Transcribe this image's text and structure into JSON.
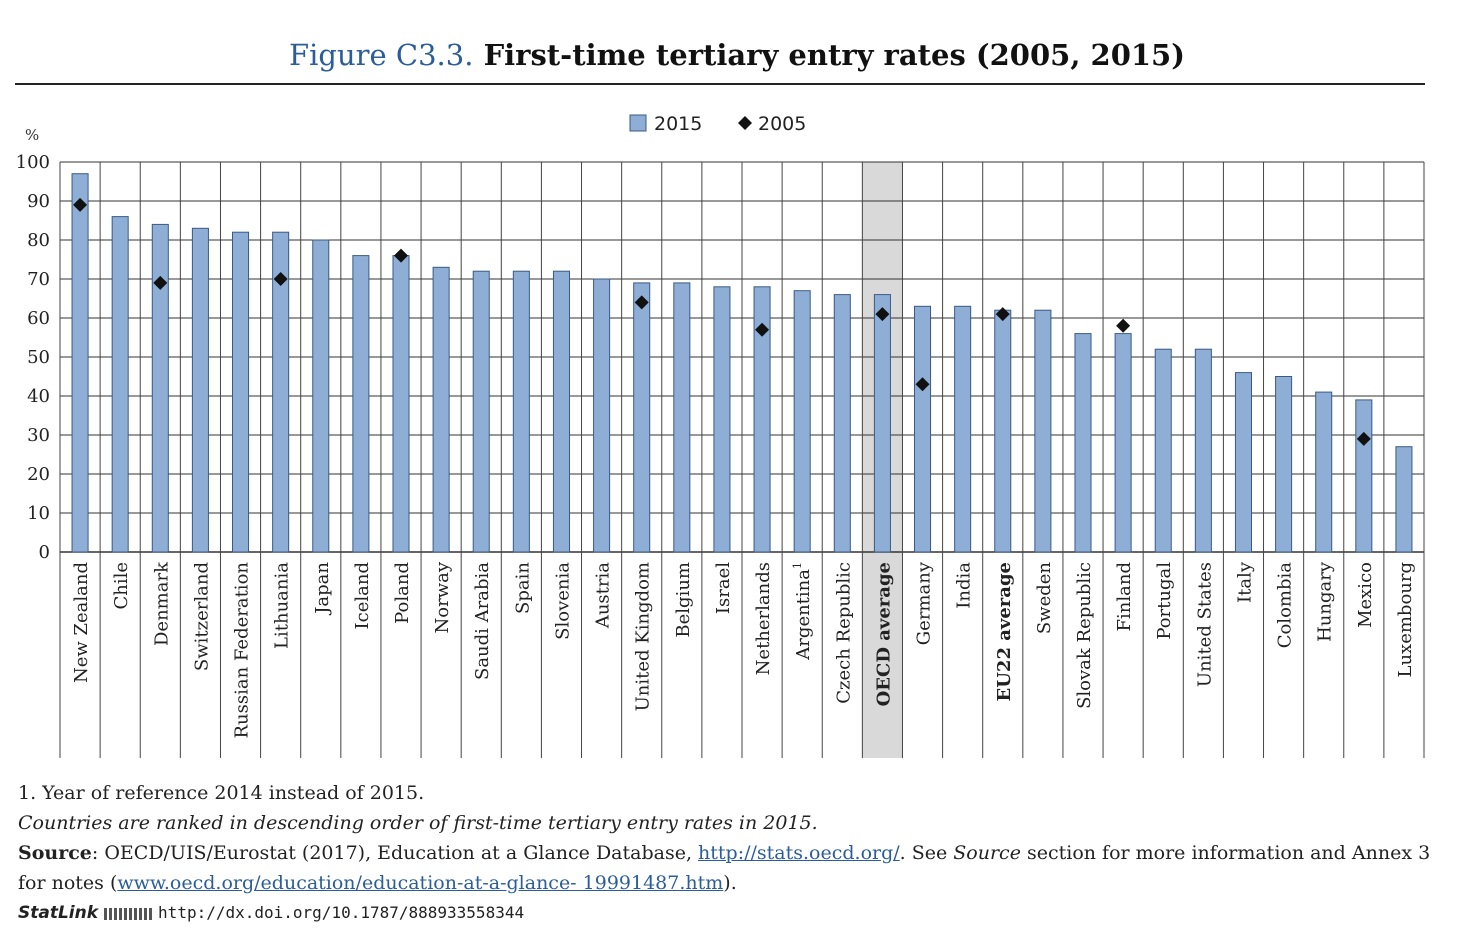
{
  "title": {
    "figure_label": "Figure C3.3.",
    "text": "First-time tertiary entry rates (2005, 2015)"
  },
  "colors": {
    "bar": "#8eaed6",
    "bar_stroke": "#3a5a86",
    "highlight_band": "#d9d9d9",
    "marker": "#111111",
    "link": "#2a5d99"
  },
  "chart_data": {
    "type": "bar",
    "ylabel": "%",
    "ylim": [
      0,
      100
    ],
    "yticks": [
      0,
      10,
      20,
      30,
      40,
      50,
      60,
      70,
      80,
      90,
      100
    ],
    "grid": true,
    "legend": {
      "position": "top-center",
      "entries": [
        "2015",
        "2005"
      ]
    },
    "categories": [
      "New Zealand",
      "Chile",
      "Denmark",
      "Switzerland",
      "Russian Federation",
      "Lithuania",
      "Japan",
      "Iceland",
      "Poland",
      "Norway",
      "Saudi Arabia",
      "Spain",
      "Slovenia",
      "Austria",
      "United Kingdom",
      "Belgium",
      "Israel",
      "Netherlands",
      "Argentina",
      "Czech Republic",
      "OECD average",
      "Germany",
      "India",
      "EU22 average",
      "Sweden",
      "Slovak Republic",
      "Finland",
      "Portugal",
      "United States",
      "Italy",
      "Colombia",
      "Hungary",
      "Mexico",
      "Luxembourg"
    ],
    "category_superscripts": {
      "Argentina": "1"
    },
    "emphasized_categories": [
      "OECD average",
      "EU22 average"
    ],
    "highlighted_category": "OECD average",
    "series": [
      {
        "name": "2015",
        "kind": "bar",
        "values": [
          97,
          86,
          84,
          83,
          82,
          82,
          80,
          76,
          76,
          73,
          72,
          72,
          72,
          70,
          69,
          69,
          68,
          68,
          67,
          66,
          66,
          63,
          63,
          62,
          62,
          56,
          56,
          52,
          52,
          46,
          45,
          41,
          39,
          27
        ]
      },
      {
        "name": "2005",
        "kind": "marker",
        "values": [
          89,
          null,
          69,
          null,
          null,
          70,
          null,
          null,
          76,
          null,
          null,
          null,
          null,
          null,
          64,
          null,
          null,
          57,
          null,
          null,
          61,
          43,
          null,
          61,
          null,
          null,
          58,
          null,
          null,
          null,
          null,
          null,
          29,
          null
        ]
      }
    ]
  },
  "notes": {
    "footnote": "1. Year of reference 2014 instead of 2015.",
    "ranking": "Countries are ranked in descending order of first-time tertiary entry rates in 2015.",
    "source_label": "Source",
    "source_text_1": ": OECD/UIS/Eurostat (2017), Education at a Glance Database, ",
    "source_link_1": "http://stats.oecd.org/",
    "source_text_2": ". See ",
    "source_word": "Source",
    "source_text_3": " section for more information and Annex 3 for notes (",
    "source_link_2": "www.oecd.org/education/education-at-a-glance- 19991487.htm",
    "source_text_4": ").",
    "statlink_label": "StatLink",
    "statlink_url": "http://dx.doi.org/10.1787/888933558344"
  }
}
